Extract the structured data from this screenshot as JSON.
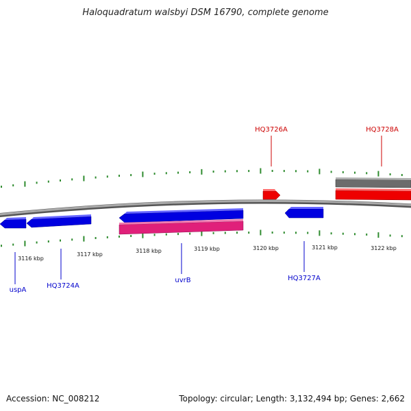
{
  "title": "Haloquadratum walsbyi DSM 16790, complete genome",
  "footer": {
    "accession": "Accession: NC_008212",
    "summary": "Topology: circular; Length: 3,132,494 bp; Genes: 2,662"
  },
  "colors": {
    "tick": "#2e8b2e",
    "backbone": "#888888",
    "forward_gene": "#ff0000",
    "reverse_gene": "#0000ff",
    "feature_magenta": "#e0207a",
    "feature_gray": "#707070",
    "label_forward": "#cc0000",
    "label_reverse": "#0000cc"
  },
  "scale_labels": [
    "3116 kbp",
    "3117 kbp",
    "3118 kbp",
    "3119 kbp",
    "3120 kbp",
    "3121 kbp",
    "3122 kbp"
  ],
  "genes": [
    {
      "label": "uspA",
      "strand": "reverse"
    },
    {
      "label": "HQ3724A",
      "strand": "reverse"
    },
    {
      "label": "uvrB",
      "strand": "reverse"
    },
    {
      "label": "HQ3726A",
      "strand": "forward"
    },
    {
      "label": "HQ3727A",
      "strand": "reverse"
    },
    {
      "label": "HQ3728A",
      "strand": "forward"
    }
  ]
}
